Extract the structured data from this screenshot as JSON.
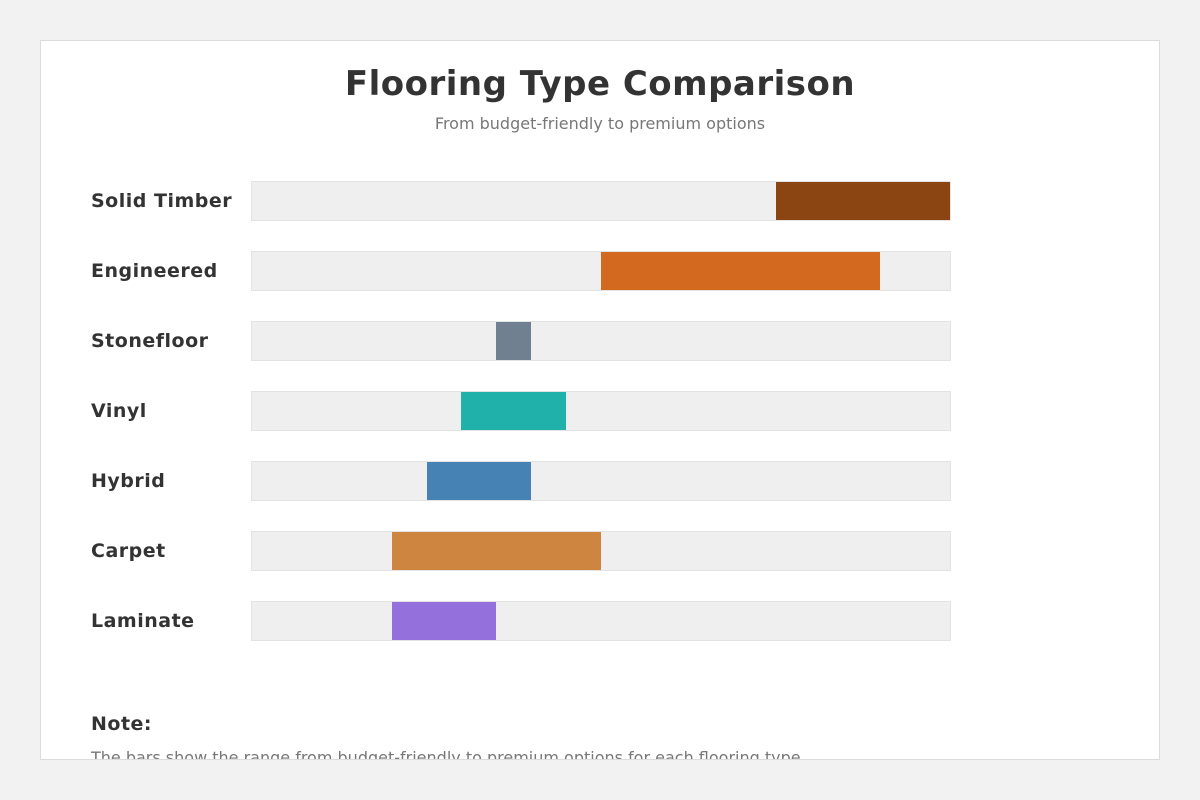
{
  "page": {
    "background_color": "#f2f2f2",
    "card_background_color": "#ffffff",
    "card_border_color": "#dcdcdc"
  },
  "header": {
    "title": "Flooring Type Comparison",
    "subtitle": "From budget-friendly to premium options"
  },
  "note": {
    "heading": "Note:",
    "text": "The bars show the range from budget-friendly to premium options for each flooring type."
  },
  "chart_data": {
    "type": "bar",
    "variant": "horizontal-range-bars",
    "title": "Flooring Type Comparison",
    "subtitle": "From budget-friendly to premium options",
    "xlabel": "",
    "ylabel": "",
    "axis_ticks_visible": false,
    "grid": false,
    "legend": false,
    "scale": {
      "min": 0,
      "max": 100
    },
    "track_color": "#efefef",
    "track_border_color": "#e3e3e3",
    "categories": [
      "Solid Timber",
      "Engineered",
      "Stonefloor",
      "Vinyl",
      "Hybrid",
      "Carpet",
      "Laminate"
    ],
    "series": [
      {
        "name": "Solid Timber",
        "range": [
          75,
          100
        ],
        "color": "#8B4513"
      },
      {
        "name": "Engineered",
        "range": [
          50,
          90
        ],
        "color": "#D2691E"
      },
      {
        "name": "Stonefloor",
        "range": [
          35,
          40
        ],
        "color": "#708090"
      },
      {
        "name": "Vinyl",
        "range": [
          30,
          45
        ],
        "color": "#20B2AA"
      },
      {
        "name": "Hybrid",
        "range": [
          25,
          40
        ],
        "color": "#4682B4"
      },
      {
        "name": "Carpet",
        "range": [
          20,
          50
        ],
        "color": "#CD853F"
      },
      {
        "name": "Laminate",
        "range": [
          20,
          35
        ],
        "color": "#9370DB"
      }
    ]
  }
}
